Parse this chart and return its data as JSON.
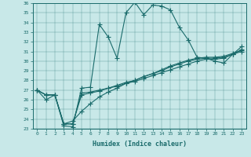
{
  "xlabel": "Humidex (Indice chaleur)",
  "bg_color": "#c8e8e8",
  "line_color": "#1a6b6b",
  "xlim": [
    -0.5,
    23.5
  ],
  "ylim": [
    23,
    36
  ],
  "xticks": [
    0,
    1,
    2,
    3,
    4,
    5,
    6,
    7,
    8,
    9,
    10,
    11,
    12,
    13,
    14,
    15,
    16,
    17,
    18,
    19,
    20,
    21,
    22,
    23
  ],
  "yticks": [
    23,
    24,
    25,
    26,
    27,
    28,
    29,
    30,
    31,
    32,
    33,
    34,
    35,
    36
  ],
  "series": [
    [
      27,
      26,
      26.5,
      23.3,
      23.2,
      27.2,
      27.3,
      33.8,
      32.5,
      30.3,
      35.0,
      36.1,
      34.8,
      35.8,
      35.7,
      35.3,
      33.5,
      32.2,
      30.4,
      30.3,
      30.0,
      29.8,
      30.7,
      31.5
    ],
    [
      27,
      26.5,
      26.5,
      23.5,
      23.5,
      26.7,
      26.8,
      27.0,
      27.2,
      27.4,
      27.7,
      27.9,
      28.2,
      28.5,
      28.8,
      29.1,
      29.4,
      29.7,
      30.0,
      30.2,
      30.2,
      30.3,
      30.7,
      31.2
    ],
    [
      27,
      26.5,
      26.5,
      23.5,
      23.8,
      24.8,
      25.6,
      26.3,
      26.8,
      27.2,
      27.7,
      28.0,
      28.4,
      28.7,
      29.0,
      29.4,
      29.7,
      30.0,
      30.2,
      30.3,
      30.3,
      30.4,
      30.7,
      31.0
    ],
    [
      27,
      26.5,
      26.5,
      23.5,
      23.5,
      26.5,
      26.7,
      26.9,
      27.2,
      27.5,
      27.8,
      28.0,
      28.4,
      28.7,
      29.1,
      29.5,
      29.8,
      30.1,
      30.3,
      30.4,
      30.4,
      30.5,
      30.8,
      31.1
    ]
  ]
}
